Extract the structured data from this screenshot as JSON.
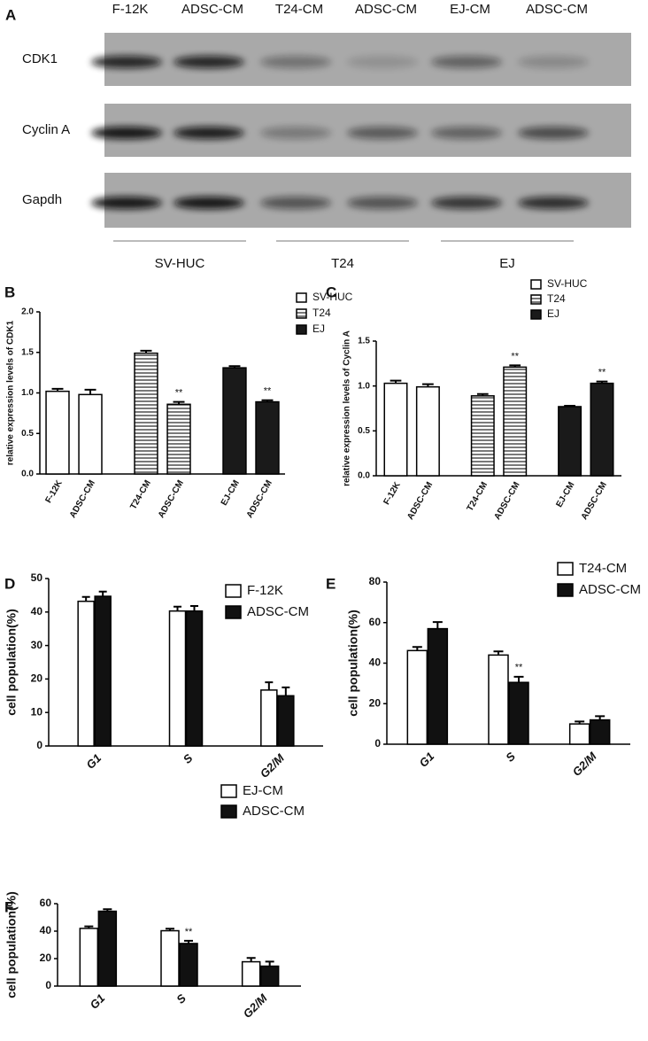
{
  "blot": {
    "panel": "A",
    "columns": [
      "F-12K",
      "ADSC-CM",
      "T24-CM",
      "ADSC-CM",
      "EJ-CM",
      "ADSC-CM"
    ],
    "rows": [
      "CDK1",
      "Cyclin A",
      "Gapdh"
    ],
    "groups": [
      "SV-HUC",
      "T24",
      "EJ"
    ]
  },
  "chart_data": [
    {
      "type": "bar",
      "panel": "B",
      "ylabel": "relative expression levels of CDK1",
      "categories": [
        "F-12K",
        "ADSC-CM",
        "T24-CM",
        "ADSC-CM",
        "EJ-CM",
        "ADSC-CM"
      ],
      "ylim": [
        0,
        2
      ],
      "yticks": [
        {
          "value": 0,
          "label": "0.0"
        },
        {
          "value": 0.5,
          "label": "0.5"
        },
        {
          "value": 1,
          "label": "1.0"
        },
        {
          "value": 1.5,
          "label": "1.5"
        },
        {
          "value": 2,
          "label": "2.0"
        }
      ],
      "series": [
        {
          "name": "SV-HUC",
          "color": "#ffffff",
          "values": [
            1.02,
            0.98,
            null,
            null,
            null,
            null
          ],
          "errors": [
            0.03,
            0.06,
            null,
            null,
            null,
            null
          ]
        },
        {
          "name": "T24",
          "color": "#ffffff",
          "hatch": "horizontal",
          "values": [
            null,
            null,
            1.49,
            0.86,
            null,
            null
          ],
          "errors": [
            null,
            null,
            0.03,
            0.03,
            null,
            null
          ],
          "significance": [
            null,
            null,
            null,
            "**",
            null,
            null
          ]
        },
        {
          "name": "EJ",
          "color": "#1a1a1a",
          "values": [
            null,
            null,
            null,
            null,
            1.31,
            0.89
          ],
          "errors": [
            null,
            null,
            null,
            null,
            0.02,
            0.02
          ],
          "significance": [
            null,
            null,
            null,
            null,
            null,
            "**"
          ]
        }
      ]
    },
    {
      "type": "bar",
      "panel": "C",
      "ylabel": "relative expression levels of Cyclin A",
      "categories": [
        "F-12K",
        "ADSC-CM",
        "T24-CM",
        "ADSC-CM",
        "EJ-CM",
        "ADSC-CM"
      ],
      "ylim": [
        0,
        1.5
      ],
      "yticks": [
        {
          "value": 0,
          "label": "0.0"
        },
        {
          "value": 0.5,
          "label": "0.5"
        },
        {
          "value": 1,
          "label": "1.0"
        },
        {
          "value": 1.5,
          "label": "1.5"
        }
      ],
      "series": [
        {
          "name": "SV-HUC",
          "color": "#ffffff",
          "values": [
            1.03,
            0.99,
            null,
            null,
            null,
            null
          ],
          "errors": [
            0.03,
            0.03,
            null,
            null,
            null,
            null
          ]
        },
        {
          "name": "T24",
          "color": "#ffffff",
          "hatch": "horizontal",
          "values": [
            null,
            null,
            0.89,
            1.21,
            null,
            null
          ],
          "errors": [
            null,
            null,
            0.02,
            0.02,
            null,
            null
          ],
          "significance": [
            null,
            null,
            null,
            "**",
            null,
            null
          ]
        },
        {
          "name": "EJ",
          "color": "#1a1a1a",
          "values": [
            null,
            null,
            null,
            null,
            0.77,
            1.03
          ],
          "errors": [
            null,
            null,
            null,
            null,
            0.01,
            0.02
          ],
          "significance": [
            null,
            null,
            null,
            null,
            null,
            "**"
          ]
        }
      ]
    },
    {
      "type": "bar",
      "panel": "D",
      "ylabel": "cell population(%)",
      "categories": [
        "G1",
        "S",
        "G2/M"
      ],
      "ylim": [
        0,
        50
      ],
      "yticks": [
        0,
        10,
        20,
        30,
        40,
        50
      ],
      "series": [
        {
          "name": "F-12K",
          "color": "#ffffff",
          "values": [
            43.2,
            40.3,
            16.7
          ],
          "errors": [
            1.3,
            1.3,
            2.3
          ]
        },
        {
          "name": "ADSC-CM",
          "color": "#111111",
          "values": [
            44.7,
            40.3,
            15.0
          ],
          "errors": [
            1.4,
            1.5,
            2.5
          ]
        }
      ]
    },
    {
      "type": "bar",
      "panel": "E",
      "ylabel": "cell population(%)",
      "categories": [
        "G1",
        "S",
        "G2/M"
      ],
      "ylim": [
        0,
        80
      ],
      "yticks": [
        0,
        20,
        40,
        60,
        80
      ],
      "series": [
        {
          "name": "T24-CM",
          "color": "#ffffff",
          "values": [
            46.2,
            44.0,
            10.0
          ],
          "errors": [
            1.8,
            1.8,
            1.2
          ]
        },
        {
          "name": "ADSC-CM",
          "color": "#111111",
          "values": [
            57.0,
            30.5,
            12.0
          ],
          "errors": [
            3.3,
            2.8,
            1.8
          ],
          "significance": [
            null,
            "**",
            null
          ]
        }
      ]
    },
    {
      "type": "bar",
      "panel": "F",
      "ylabel": "cell population(%)",
      "categories": [
        "G1",
        "S",
        "G2/M"
      ],
      "ylim": [
        0,
        60
      ],
      "yticks": [
        0,
        20,
        40,
        60
      ],
      "series": [
        {
          "name": "EJ-CM",
          "color": "#ffffff",
          "values": [
            42.0,
            40.3,
            17.7
          ],
          "errors": [
            1.5,
            1.5,
            2.8
          ]
        },
        {
          "name": "ADSC-CM",
          "color": "#111111",
          "values": [
            54.5,
            31.0,
            14.5
          ],
          "errors": [
            1.5,
            2.0,
            3.3
          ],
          "significance": [
            null,
            "**",
            null
          ]
        }
      ]
    }
  ]
}
